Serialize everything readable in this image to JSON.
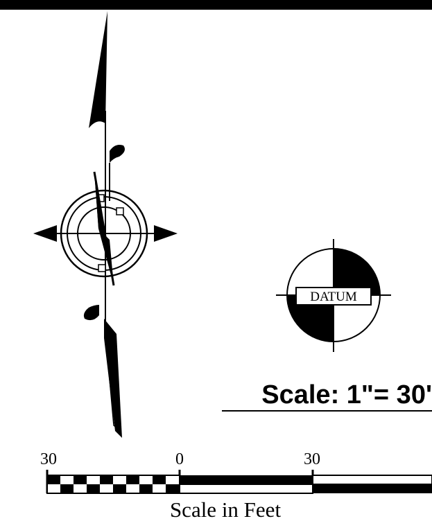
{
  "datum": {
    "label": "DATUM"
  },
  "scale_note": {
    "text": "Scale: 1\"= 30'"
  },
  "scale_bar": {
    "ticks": [
      "30",
      "0",
      "30"
    ],
    "caption": "Scale in Feet"
  },
  "colors": {
    "ink": "#000000",
    "paper": "#ffffff"
  },
  "icons": {
    "north_arrow": "north-arrow-icon",
    "datum_symbol": "datum-icon"
  }
}
